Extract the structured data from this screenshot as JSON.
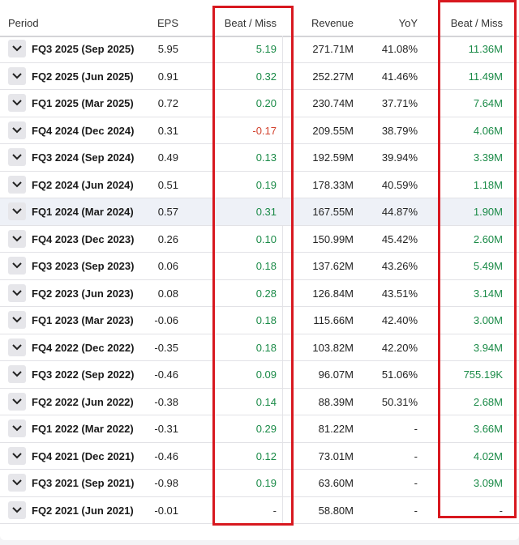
{
  "columns": {
    "period": "Period",
    "eps": "EPS",
    "eps_beat_miss": "Beat / Miss",
    "revenue": "Revenue",
    "yoy": "YoY",
    "revenue_beat_miss": "Beat / Miss"
  },
  "colors": {
    "positive": "#1a8a47",
    "negative": "#d2422e",
    "highlight_box": "#d8181f"
  },
  "rows": [
    {
      "period": "FQ3 2025 (Sep 2025)",
      "eps": "5.95",
      "eps_beat_miss": "5.19",
      "revenue": "271.71M",
      "yoy": "41.08%",
      "revenue_beat_miss": "11.36M"
    },
    {
      "period": "FQ2 2025 (Jun 2025)",
      "eps": "0.91",
      "eps_beat_miss": "0.32",
      "revenue": "252.27M",
      "yoy": "41.46%",
      "revenue_beat_miss": "11.49M"
    },
    {
      "period": "FQ1 2025 (Mar 2025)",
      "eps": "0.72",
      "eps_beat_miss": "0.20",
      "revenue": "230.74M",
      "yoy": "37.71%",
      "revenue_beat_miss": "7.64M"
    },
    {
      "period": "FQ4 2024 (Dec 2024)",
      "eps": "0.31",
      "eps_beat_miss": "-0.17",
      "revenue": "209.55M",
      "yoy": "38.79%",
      "revenue_beat_miss": "4.06M"
    },
    {
      "period": "FQ3 2024 (Sep 2024)",
      "eps": "0.49",
      "eps_beat_miss": "0.13",
      "revenue": "192.59M",
      "yoy": "39.94%",
      "revenue_beat_miss": "3.39M"
    },
    {
      "period": "FQ2 2024 (Jun 2024)",
      "eps": "0.51",
      "eps_beat_miss": "0.19",
      "revenue": "178.33M",
      "yoy": "40.59%",
      "revenue_beat_miss": "1.18M"
    },
    {
      "period": "FQ1 2024 (Mar 2024)",
      "eps": "0.57",
      "eps_beat_miss": "0.31",
      "revenue": "167.55M",
      "yoy": "44.87%",
      "revenue_beat_miss": "1.90M"
    },
    {
      "period": "FQ4 2023 (Dec 2023)",
      "eps": "0.26",
      "eps_beat_miss": "0.10",
      "revenue": "150.99M",
      "yoy": "45.42%",
      "revenue_beat_miss": "2.60M"
    },
    {
      "period": "FQ3 2023 (Sep 2023)",
      "eps": "0.06",
      "eps_beat_miss": "0.18",
      "revenue": "137.62M",
      "yoy": "43.26%",
      "revenue_beat_miss": "5.49M"
    },
    {
      "period": "FQ2 2023 (Jun 2023)",
      "eps": "0.08",
      "eps_beat_miss": "0.28",
      "revenue": "126.84M",
      "yoy": "43.51%",
      "revenue_beat_miss": "3.14M"
    },
    {
      "period": "FQ1 2023 (Mar 2023)",
      "eps": "-0.06",
      "eps_beat_miss": "0.18",
      "revenue": "115.66M",
      "yoy": "42.40%",
      "revenue_beat_miss": "3.00M"
    },
    {
      "period": "FQ4 2022 (Dec 2022)",
      "eps": "-0.35",
      "eps_beat_miss": "0.18",
      "revenue": "103.82M",
      "yoy": "42.20%",
      "revenue_beat_miss": "3.94M"
    },
    {
      "period": "FQ3 2022 (Sep 2022)",
      "eps": "-0.46",
      "eps_beat_miss": "0.09",
      "revenue": "96.07M",
      "yoy": "51.06%",
      "revenue_beat_miss": "755.19K"
    },
    {
      "period": "FQ2 2022 (Jun 2022)",
      "eps": "-0.38",
      "eps_beat_miss": "0.14",
      "revenue": "88.39M",
      "yoy": "50.31%",
      "revenue_beat_miss": "2.68M"
    },
    {
      "period": "FQ1 2022 (Mar 2022)",
      "eps": "-0.31",
      "eps_beat_miss": "0.29",
      "revenue": "81.22M",
      "yoy": "-",
      "revenue_beat_miss": "3.66M"
    },
    {
      "period": "FQ4 2021 (Dec 2021)",
      "eps": "-0.46",
      "eps_beat_miss": "0.12",
      "revenue": "73.01M",
      "yoy": "-",
      "revenue_beat_miss": "4.02M"
    },
    {
      "period": "FQ3 2021 (Sep 2021)",
      "eps": "-0.98",
      "eps_beat_miss": "0.19",
      "revenue": "63.60M",
      "yoy": "-",
      "revenue_beat_miss": "3.09M"
    },
    {
      "period": "FQ2 2021 (Jun 2021)",
      "eps": "-0.01",
      "eps_beat_miss": "-",
      "revenue": "58.80M",
      "yoy": "-",
      "revenue_beat_miss": "-"
    }
  ],
  "highlighted_row_index": 6,
  "row_toggle_icon": "chevron-down-icon"
}
